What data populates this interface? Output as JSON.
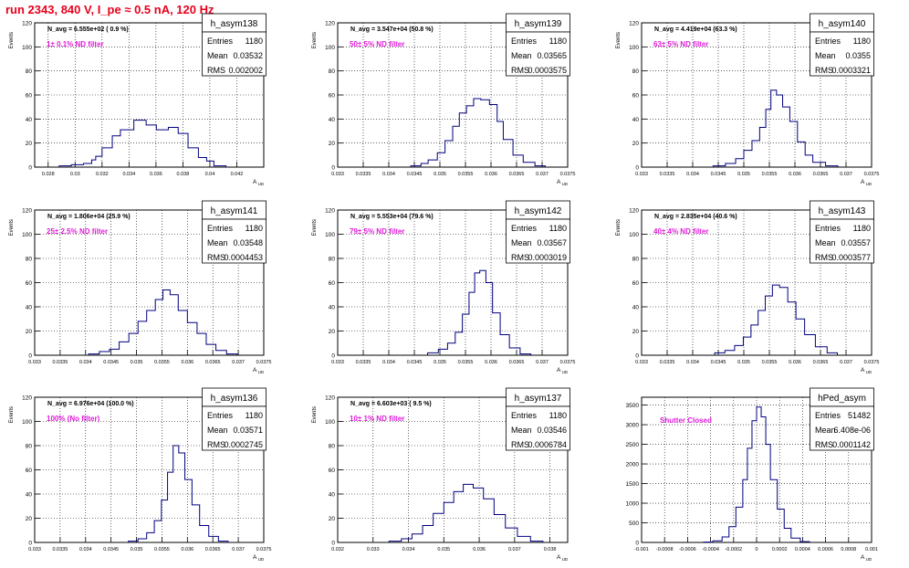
{
  "run_title": "run 2343,   840 V, I_pe ≈ 0.5 nA, 120 Hz",
  "colors": {
    "hist": "#00007f",
    "magenta": "#e01cd8",
    "title_red": "#e8001c",
    "frame": "#000000",
    "grid": "#000000"
  },
  "stats_labels": {
    "entries": "Entries",
    "mean": "Mean",
    "rms": "RMS"
  },
  "chart_data": [
    {
      "type": "bar",
      "name": "h_asym138",
      "navg": "N_avg = 6.555e+02 ( 0.9 %)",
      "filter": "1± 0.1% ND filter",
      "entries": "1180",
      "mean": "0.03532",
      "rms": "0.002002",
      "xlabel": "A_UD",
      "ylabel": "Events",
      "ylim": [
        0,
        120
      ],
      "xlim": [
        0.027,
        0.044
      ],
      "yticks": [
        "0",
        "20",
        "40",
        "60",
        "80",
        "100",
        "120"
      ],
      "xticks": [
        "0.028",
        "0.03",
        "0.032",
        "0.034",
        "0.036",
        "0.038",
        "0.04",
        "0.042"
      ],
      "bins": [
        0.02882,
        0.02972,
        0.03062,
        0.03123,
        0.03153,
        0.032,
        0.03276,
        0.03336,
        0.03436,
        0.03527,
        0.03603,
        0.03692,
        0.03765,
        0.03838,
        0.03915,
        0.03976,
        0.0403
      ],
      "values": [
        1,
        2,
        3,
        6,
        9,
        16,
        26,
        31,
        39,
        35,
        31,
        33,
        28,
        16,
        8,
        5,
        1
      ]
    },
    {
      "type": "bar",
      "name": "h_asym139",
      "navg": "N_avg = 3.547e+04 (50.8 %)",
      "filter": "50± 5% ND filter",
      "entries": "1180",
      "mean": "0.03565",
      "rms": "0.0003575",
      "xlabel": "A_UD",
      "ylabel": "Events",
      "ylim": [
        0,
        120
      ],
      "xlim": [
        0.033,
        0.0375
      ],
      "yticks": [
        "0",
        "20",
        "40",
        "60",
        "80",
        "100",
        "120"
      ],
      "xticks": [
        "0.033",
        "0.0335",
        "0.034",
        "0.0345",
        "0.035",
        "0.0355",
        "0.036",
        "0.0365",
        "0.037",
        "0.0375"
      ],
      "bins": [
        0.03443,
        0.03463,
        0.03477,
        0.03495,
        0.0351,
        0.03525,
        0.03538,
        0.03552,
        0.03566,
        0.0358,
        0.03597,
        0.03612,
        0.03624,
        0.03643,
        0.03663,
        0.03686
      ],
      "values": [
        1,
        3,
        6,
        12,
        22,
        34,
        45,
        51,
        57,
        56,
        52,
        38,
        23,
        10,
        4,
        1
      ]
    },
    {
      "type": "bar",
      "name": "h_asym140",
      "navg": "N_avg = 4.419e+04 (63.3 %)",
      "filter": "63± 5% ND filter",
      "entries": "1180",
      "mean": "0.0355",
      "rms": "0.0003321",
      "xlabel": "A_UD",
      "ylabel": "Events",
      "ylim": [
        0,
        120
      ],
      "xlim": [
        0.033,
        0.0375
      ],
      "yticks": [
        "0",
        "20",
        "40",
        "60",
        "80",
        "100",
        "120"
      ],
      "xticks": [
        "0.033",
        "0.0335",
        "0.034",
        "0.0345",
        "0.035",
        "0.0355",
        "0.036",
        "0.0365",
        "0.037",
        "0.0375"
      ],
      "bins": [
        0.0344,
        0.03464,
        0.03484,
        0.035,
        0.03516,
        0.03531,
        0.03543,
        0.03553,
        0.03564,
        0.03576,
        0.0359,
        0.03605,
        0.0362,
        0.03635,
        0.0366
      ],
      "values": [
        1,
        3,
        7,
        14,
        22,
        33,
        48,
        64,
        60,
        50,
        38,
        21,
        10,
        4,
        1
      ]
    },
    {
      "type": "bar",
      "name": "h_asym141",
      "navg": "N_avg = 1.806e+04 (25.9 %)",
      "filter": "25± 2.5% ND filter",
      "entries": "1180",
      "mean": "0.03548",
      "rms": "0.0004453",
      "xlabel": "A_UD",
      "ylabel": "Events",
      "ylim": [
        0,
        120
      ],
      "xlim": [
        0.033,
        0.0375
      ],
      "yticks": [
        "0",
        "20",
        "40",
        "60",
        "80",
        "100",
        "120"
      ],
      "xticks": [
        "0.033",
        "0.0335",
        "0.034",
        "0.0345",
        "0.035",
        "0.0355",
        "0.036",
        "0.0365",
        "0.037",
        "0.0375"
      ],
      "bins": [
        0.03406,
        0.03427,
        0.03447,
        0.03466,
        0.03485,
        0.03503,
        0.0352,
        0.03537,
        0.03552,
        0.03566,
        0.03582,
        0.036,
        0.03619,
        0.03637,
        0.03656,
        0.03677
      ],
      "values": [
        1,
        3,
        5,
        11,
        18,
        28,
        37,
        46,
        54,
        50,
        37,
        27,
        18,
        9,
        4,
        1
      ]
    },
    {
      "type": "bar",
      "name": "h_asym142",
      "navg": "N_avg = 5.553e+04 (79.6 %)",
      "filter": "79± 5% ND filter",
      "entries": "1180",
      "mean": "0.03567",
      "rms": "0.0003019",
      "xlabel": "A_UD",
      "ylabel": "Events",
      "ylim": [
        0,
        120
      ],
      "xlim": [
        0.033,
        0.0375
      ],
      "yticks": [
        "0",
        "20",
        "40",
        "60",
        "80",
        "100",
        "120"
      ],
      "xticks": [
        "0.033",
        "0.0335",
        "0.034",
        "0.0345",
        "0.035",
        "0.0355",
        "0.036",
        "0.0365",
        "0.037",
        "0.0375"
      ],
      "bins": [
        0.03476,
        0.03497,
        0.03515,
        0.0353,
        0.03544,
        0.03557,
        0.03568,
        0.03578,
        0.0359,
        0.03603,
        0.03618,
        0.03636,
        0.03657
      ],
      "values": [
        2,
        5,
        10,
        19,
        34,
        52,
        68,
        70,
        60,
        35,
        17,
        6,
        1
      ]
    },
    {
      "type": "bar",
      "name": "h_asym143",
      "navg": "N_avg = 2.835e+04 (40.6 %)",
      "filter": "40± 4% ND filter",
      "entries": "1180",
      "mean": "0.03557",
      "rms": "0.0003577",
      "xlabel": "A_UD",
      "ylabel": "Events",
      "ylim": [
        0,
        120
      ],
      "xlim": [
        0.033,
        0.0375
      ],
      "yticks": [
        "0",
        "20",
        "40",
        "60",
        "80",
        "100",
        "120"
      ],
      "xticks": [
        "0.033",
        "0.0335",
        "0.034",
        "0.0345",
        "0.035",
        "0.0355",
        "0.036",
        "0.0365",
        "0.037",
        "0.0375"
      ],
      "bins": [
        0.03443,
        0.03463,
        0.03482,
        0.03499,
        0.03514,
        0.03528,
        0.03542,
        0.03556,
        0.0357,
        0.03586,
        0.03602,
        0.03619,
        0.0364,
        0.03663
      ],
      "values": [
        2,
        4,
        8,
        15,
        25,
        37,
        49,
        58,
        56,
        44,
        30,
        17,
        7,
        2
      ]
    },
    {
      "type": "bar",
      "name": "h_asym136",
      "navg": "N_avg = 6.976e+04 (100.0 %)",
      "filter": "100% (No filter)",
      "entries": "1180",
      "mean": "0.03571",
      "rms": "0.0002745",
      "xlabel": "A_UD",
      "ylabel": "Events",
      "ylim": [
        0,
        120
      ],
      "xlim": [
        0.033,
        0.0375
      ],
      "yticks": [
        "0",
        "20",
        "40",
        "60",
        "80",
        "100",
        "120"
      ],
      "xticks": [
        "0.033",
        "0.0335",
        "0.034",
        "0.0345",
        "0.035",
        "0.0355",
        "0.036",
        "0.0365",
        "0.037",
        "0.0375"
      ],
      "bins": [
        0.03484,
        0.03503,
        0.0352,
        0.03535,
        0.03549,
        0.03561,
        0.03572,
        0.03583,
        0.03595,
        0.03609,
        0.03624,
        0.03642,
        0.03661
      ],
      "values": [
        1,
        3,
        8,
        18,
        35,
        58,
        80,
        74,
        52,
        31,
        14,
        5,
        1
      ]
    },
    {
      "type": "bar",
      "name": "h_asym137",
      "navg": "N_avg = 6.603e+03 ( 9.5 %)",
      "filter": "10± 1% ND filter",
      "entries": "1180",
      "mean": "0.03546",
      "rms": "0.0006784",
      "xlabel": "A_UD",
      "ylabel": "Events",
      "ylim": [
        0,
        120
      ],
      "xlim": [
        0.032,
        0.0385
      ],
      "yticks": [
        "0",
        "20",
        "40",
        "60",
        "80",
        "100",
        "120"
      ],
      "xticks": [
        "0.032",
        "0.033",
        "0.034",
        "0.035",
        "0.036",
        "0.037",
        "0.038"
      ],
      "bins": [
        0.03345,
        0.0338,
        0.0341,
        0.0344,
        0.0347,
        0.035,
        0.03528,
        0.03555,
        0.03583,
        0.03612,
        0.03642,
        0.03674,
        0.03708,
        0.03745
      ],
      "values": [
        1,
        3,
        7,
        14,
        24,
        33,
        42,
        48,
        45,
        36,
        23,
        12,
        5,
        1
      ]
    },
    {
      "type": "bar",
      "name": "hPed_asym",
      "navg": "",
      "filter": "Shutter Closed",
      "entries": "51482",
      "mean": "6.408e-06",
      "rms": "0.0001142",
      "xlabel": "A_UD",
      "ylabel": "",
      "ylim": [
        0,
        3700
      ],
      "xlim": [
        -0.001,
        0.001
      ],
      "yticks": [
        "0",
        "500",
        "1000",
        "1500",
        "2000",
        "2500",
        "3000",
        "3500"
      ],
      "xticks": [
        "-0.001",
        "-0.0008",
        "-0.0006",
        "-0.0004",
        "-0.0002",
        "0",
        "0.0002",
        "0.0004",
        "0.0006",
        "0.0008",
        "0.001"
      ],
      "bins": [
        -0.00046,
        -0.00038,
        -0.0003,
        -0.00024,
        -0.00018,
        -0.00012,
        -8e-05,
        -4e-05,
        0.0,
        4e-05,
        8e-05,
        0.00012,
        0.00018,
        0.00024,
        0.0003,
        0.00038
      ],
      "values": [
        10,
        40,
        140,
        400,
        900,
        1600,
        2400,
        3100,
        3450,
        3200,
        2500,
        1600,
        850,
        360,
        110,
        20
      ]
    }
  ]
}
